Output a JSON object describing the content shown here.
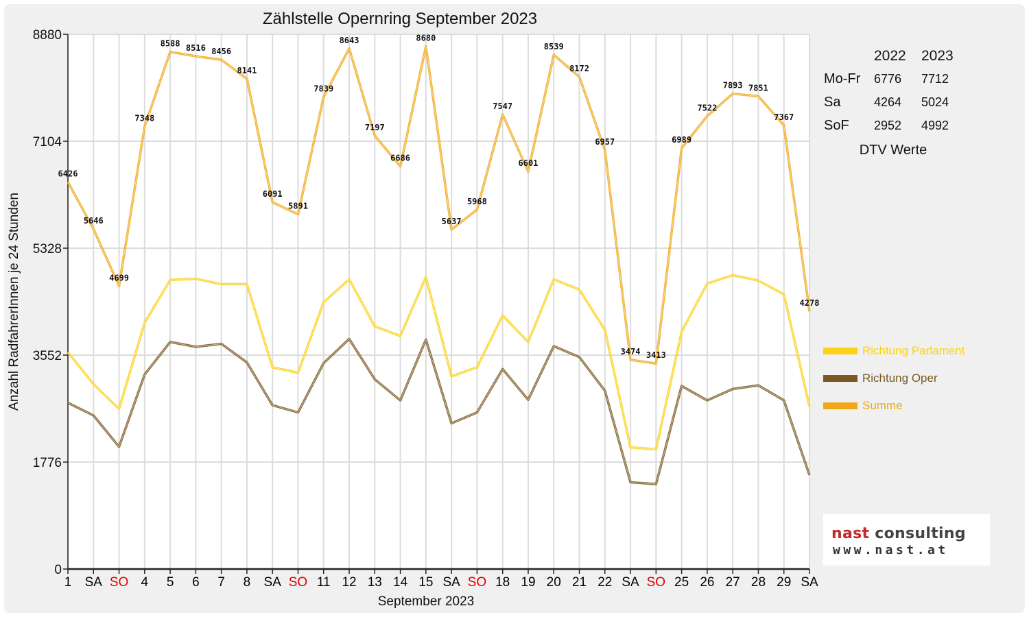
{
  "chart_data": {
    "type": "line",
    "title": "Zählstelle Opernring September 2023",
    "xlabel": "September 2023",
    "ylabel": "Anzahl RadfahrerInnen je 24 Stunden",
    "ylim": [
      0,
      8880
    ],
    "yticks": [
      0,
      1776,
      3552,
      5328,
      7104,
      8880
    ],
    "grid": true,
    "legend_position": "right",
    "categories": [
      "1",
      "SA",
      "SO",
      "4",
      "5",
      "6",
      "7",
      "8",
      "SA",
      "SO",
      "11",
      "12",
      "13",
      "14",
      "15",
      "SA",
      "SO",
      "18",
      "19",
      "20",
      "21",
      "22",
      "SA",
      "SO",
      "25",
      "26",
      "27",
      "28",
      "29",
      "SA"
    ],
    "category_colors": [
      "#000000",
      "#000000",
      "#e00000",
      "#000000",
      "#000000",
      "#000000",
      "#000000",
      "#000000",
      "#000000",
      "#e00000",
      "#000000",
      "#000000",
      "#000000",
      "#000000",
      "#000000",
      "#000000",
      "#e00000",
      "#000000",
      "#000000",
      "#000000",
      "#000000",
      "#000000",
      "#000000",
      "#e00000",
      "#000000",
      "#000000",
      "#000000",
      "#000000",
      "#000000",
      "#000000"
    ],
    "series": [
      {
        "name": "Richtung Parlament",
        "color": "#fcd116",
        "values": [
          3600,
          3070,
          2660,
          4090,
          4800,
          4820,
          4730,
          4730,
          3350,
          3260,
          4430,
          4810,
          4030,
          3870,
          4850,
          3200,
          3350,
          4210,
          3770,
          4810,
          4640,
          3970,
          2020,
          1990,
          3940,
          4740,
          4880,
          4790,
          4560,
          2700
        ]
      },
      {
        "name": "Richtung Oper",
        "color": "#7a5a22",
        "values": [
          2760,
          2550,
          2030,
          3230,
          3770,
          3690,
          3740,
          3430,
          2720,
          2600,
          3420,
          3820,
          3150,
          2800,
          3810,
          2420,
          2600,
          3320,
          2810,
          3700,
          3520,
          2960,
          1440,
          1410,
          3040,
          2800,
          2990,
          3050,
          2800,
          1560
        ]
      },
      {
        "name": "Summe",
        "color": "#f0a818",
        "values": [
          6426,
          5646,
          4699,
          7348,
          8588,
          8516,
          8456,
          8141,
          6091,
          5891,
          7839,
          8643,
          7197,
          6686,
          8680,
          5637,
          5968,
          7547,
          6601,
          8539,
          8172,
          6957,
          3474,
          3413,
          6989,
          7522,
          7893,
          7851,
          7367,
          4278
        ],
        "labels": [
          "6426",
          "5646",
          "4699",
          "7348",
          "8588",
          "8516",
          "8456",
          "8141",
          "6091",
          "5891",
          "7839",
          "8643",
          "7197",
          "6686",
          "8680",
          "5637",
          "5968",
          "7547",
          "6601",
          "8539",
          "8172",
          "6957",
          "3474",
          "3413",
          "6989",
          "7522",
          "7893",
          "7851",
          "7367",
          "4278"
        ]
      }
    ]
  },
  "dtv_table": {
    "headers": [
      "",
      "2022",
      "2023"
    ],
    "rows": [
      {
        "label": "Mo-Fr",
        "y2022": "6776",
        "y2023": "7712"
      },
      {
        "label": "Sa",
        "y2022": "4264",
        "y2023": "5024"
      },
      {
        "label": "SoF",
        "y2022": "2952",
        "y2023": "4992"
      }
    ],
    "caption": "DTV Werte"
  },
  "logo": {
    "name_prefix": "nast",
    "name_suffix": " consulting",
    "url": "www.nast.at",
    "accent_color": "#c62828"
  }
}
